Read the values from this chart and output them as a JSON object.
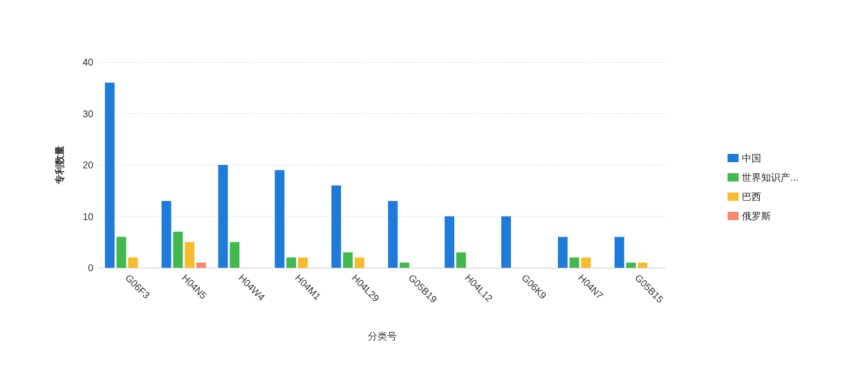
{
  "chart_data": {
    "type": "bar",
    "xlabel": "分类号",
    "ylabel": "专利数量",
    "categories": [
      "G06F3",
      "H04N5",
      "H04W4",
      "H04M1",
      "H04L29",
      "G05B19",
      "H04L12",
      "G06K9",
      "H04N7",
      "G05B15"
    ],
    "series": [
      {
        "name": "中国",
        "color": "#1e7bd9",
        "values": [
          36,
          13,
          20,
          19,
          16,
          13,
          10,
          10,
          6,
          6
        ]
      },
      {
        "name": "世界知识产...",
        "color": "#41b94c",
        "values": [
          6,
          7,
          5,
          2,
          3,
          1,
          3,
          0,
          2,
          1
        ]
      },
      {
        "name": "巴西",
        "color": "#f8bb2c",
        "values": [
          2,
          5,
          0,
          2,
          2,
          0,
          0,
          0,
          2,
          1
        ]
      },
      {
        "name": "俄罗斯",
        "color": "#f7896b",
        "values": [
          0,
          1,
          0,
          0,
          0,
          0,
          0,
          0,
          0,
          0
        ]
      }
    ],
    "ylim": [
      0,
      40
    ],
    "yticks": [
      0,
      10,
      20,
      30,
      40
    ],
    "grid": "y",
    "legend": "right"
  }
}
